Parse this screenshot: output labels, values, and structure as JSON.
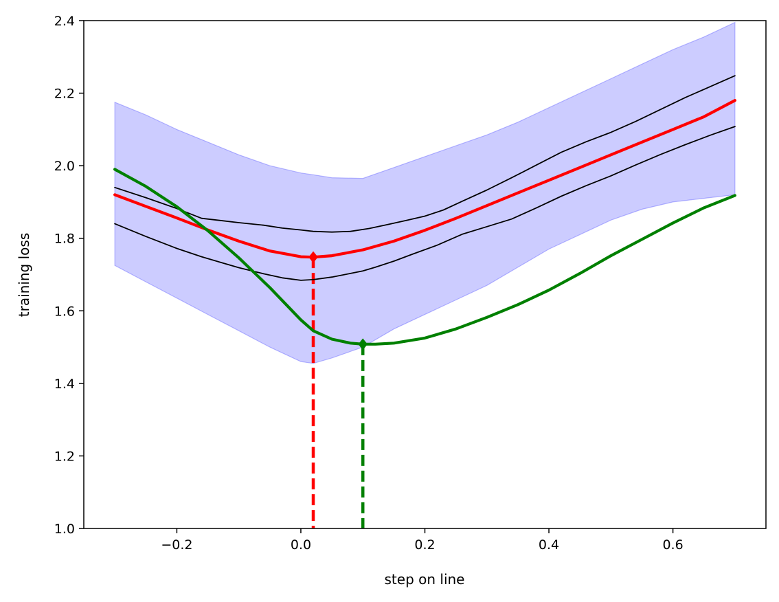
{
  "chart_data": {
    "type": "line",
    "title": "",
    "xlabel": "step on line",
    "ylabel": "training loss",
    "xlim": [
      -0.35,
      0.75
    ],
    "ylim": [
      1.0,
      2.4
    ],
    "xticks": [
      -0.2,
      0.0,
      0.2,
      0.4,
      0.6
    ],
    "xtick_labels": [
      "−0.2",
      "0.0",
      "0.2",
      "0.4",
      "0.6"
    ],
    "yticks": [
      1.0,
      1.2,
      1.4,
      1.6,
      1.8,
      2.0,
      2.2,
      2.4
    ],
    "ytick_labels": [
      "1.0",
      "1.2",
      "1.4",
      "1.6",
      "1.8",
      "2.0",
      "2.2",
      "2.4"
    ],
    "band": {
      "name": "range",
      "color": "#0000ff",
      "opacity": 0.2,
      "x": [
        -0.3,
        -0.25,
        -0.2,
        -0.15,
        -0.1,
        -0.05,
        0.0,
        0.02,
        0.05,
        0.1,
        0.15,
        0.2,
        0.25,
        0.3,
        0.35,
        0.4,
        0.45,
        0.5,
        0.55,
        0.6,
        0.65,
        0.7
      ],
      "upper": [
        2.175,
        2.14,
        2.1,
        2.065,
        2.03,
        2.0,
        1.98,
        1.975,
        1.967,
        1.965,
        1.995,
        2.025,
        2.055,
        2.085,
        2.12,
        2.16,
        2.2,
        2.24,
        2.28,
        2.32,
        2.355,
        2.395
      ],
      "lower": [
        1.725,
        1.68,
        1.635,
        1.59,
        1.545,
        1.5,
        1.46,
        1.455,
        1.47,
        1.5,
        1.55,
        1.59,
        1.63,
        1.67,
        1.72,
        1.77,
        1.81,
        1.85,
        1.88,
        1.9,
        1.91,
        1.92
      ]
    },
    "series": [
      {
        "name": "upper-run",
        "color": "#000000",
        "width": 1.8,
        "x": [
          -0.3,
          -0.25,
          -0.2,
          -0.16,
          -0.13,
          -0.1,
          -0.06,
          -0.03,
          0.0,
          0.02,
          0.05,
          0.08,
          0.11,
          0.14,
          0.17,
          0.2,
          0.23,
          0.26,
          0.3,
          0.34,
          0.38,
          0.42,
          0.46,
          0.5,
          0.54,
          0.58,
          0.62,
          0.66,
          0.7
        ],
        "y": [
          1.94,
          1.912,
          1.882,
          1.855,
          1.849,
          1.843,
          1.836,
          1.828,
          1.823,
          1.819,
          1.817,
          1.819,
          1.827,
          1.838,
          1.849,
          1.861,
          1.878,
          1.902,
          1.933,
          1.967,
          2.002,
          2.037,
          2.066,
          2.092,
          2.122,
          2.155,
          2.188,
          2.218,
          2.248
        ]
      },
      {
        "name": "lower-run",
        "color": "#000000",
        "width": 1.8,
        "x": [
          -0.3,
          -0.25,
          -0.2,
          -0.16,
          -0.13,
          -0.1,
          -0.06,
          -0.03,
          0.0,
          0.02,
          0.05,
          0.08,
          0.1,
          0.12,
          0.15,
          0.18,
          0.22,
          0.26,
          0.3,
          0.34,
          0.38,
          0.42,
          0.46,
          0.5,
          0.54,
          0.58,
          0.62,
          0.66,
          0.7
        ],
        "y": [
          1.84,
          1.805,
          1.772,
          1.749,
          1.734,
          1.719,
          1.702,
          1.691,
          1.684,
          1.686,
          1.693,
          1.703,
          1.71,
          1.72,
          1.737,
          1.756,
          1.781,
          1.811,
          1.832,
          1.853,
          1.884,
          1.916,
          1.945,
          1.972,
          2.002,
          2.031,
          2.058,
          2.084,
          2.108
        ]
      },
      {
        "name": "mean",
        "color": "#ff0000",
        "width": 4.2,
        "x": [
          -0.3,
          -0.25,
          -0.2,
          -0.15,
          -0.1,
          -0.05,
          0.0,
          0.02,
          0.05,
          0.1,
          0.15,
          0.2,
          0.25,
          0.3,
          0.35,
          0.4,
          0.45,
          0.5,
          0.55,
          0.6,
          0.65,
          0.7
        ],
        "y": [
          1.92,
          1.888,
          1.856,
          1.823,
          1.792,
          1.765,
          1.749,
          1.748,
          1.752,
          1.768,
          1.792,
          1.822,
          1.855,
          1.89,
          1.925,
          1.96,
          1.995,
          2.03,
          2.065,
          2.1,
          2.135,
          2.18
        ]
      },
      {
        "name": "estimate",
        "color": "#008000",
        "width": 4.2,
        "x": [
          -0.3,
          -0.25,
          -0.2,
          -0.15,
          -0.1,
          -0.05,
          0.0,
          0.02,
          0.05,
          0.08,
          0.1,
          0.12,
          0.15,
          0.2,
          0.25,
          0.3,
          0.35,
          0.4,
          0.45,
          0.5,
          0.55,
          0.6,
          0.65,
          0.7
        ],
        "y": [
          1.99,
          1.943,
          1.887,
          1.821,
          1.746,
          1.664,
          1.575,
          1.545,
          1.522,
          1.511,
          1.508,
          1.508,
          1.511,
          1.525,
          1.55,
          1.582,
          1.617,
          1.657,
          1.703,
          1.752,
          1.797,
          1.842,
          1.884,
          1.918
        ]
      }
    ],
    "markers": [
      {
        "name": "mean-minimum",
        "x": 0.02,
        "y": 1.748,
        "color": "#ff0000"
      },
      {
        "name": "estimate-minimum",
        "x": 0.1,
        "y": 1.508,
        "color": "#008000"
      }
    ],
    "vlines": [
      {
        "name": "mean-minimum-drop",
        "x": 0.02,
        "y_top": 1.748,
        "color": "#ff0000",
        "style": "dashed"
      },
      {
        "name": "estimate-minimum-drop",
        "x": 0.1,
        "y_top": 1.508,
        "color": "#008000",
        "style": "dashed"
      }
    ]
  }
}
